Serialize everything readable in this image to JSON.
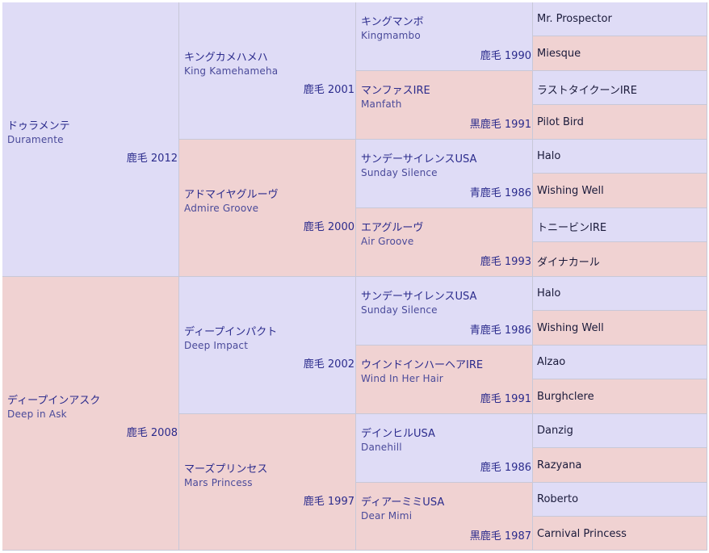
{
  "gen1": [
    {
      "ja": "ドゥラメンテ",
      "en": "Duramente",
      "year": "鹿毛 2012"
    },
    {
      "ja": "ディープインアスク",
      "en": "Deep in Ask",
      "year": "鹿毛 2008"
    }
  ],
  "gen2": [
    {
      "ja": "キングカメハメハ",
      "en": "King Kamehameha",
      "year": "鹿毛 2001"
    },
    {
      "ja": "アドマイヤグルーヴ",
      "en": "Admire Groove",
      "year": "鹿毛 2000"
    },
    {
      "ja": "ディープインパクト",
      "en": "Deep Impact",
      "year": "鹿毛 2002"
    },
    {
      "ja": "マーズプリンセス",
      "en": "Mars Princess",
      "year": "鹿毛 1997"
    }
  ],
  "gen3": [
    {
      "ja": "キングマンボ",
      "en": "Kingmambo",
      "year": "鹿毛 1990"
    },
    {
      "ja": "マンファスIRE",
      "en": "Manfath",
      "year": "黒鹿毛 1991"
    },
    {
      "ja": "サンデーサイレンスUSA",
      "en": "Sunday Silence",
      "year": "青鹿毛 1986"
    },
    {
      "ja": "エアグルーヴ",
      "en": "Air Groove",
      "year": "鹿毛 1993"
    },
    {
      "ja": "サンデーサイレンスUSA",
      "en": "Sunday Silence",
      "year": "青鹿毛 1986"
    },
    {
      "ja": "ウインドインハーヘアIRE",
      "en": "Wind In Her Hair",
      "year": "鹿毛 1991"
    },
    {
      "ja": "デインヒルUSA",
      "en": "Danehill",
      "year": "鹿毛 1986"
    },
    {
      "ja": "ディアーミミUSA",
      "en": "Dear Mimi",
      "year": "黒鹿毛 1987"
    }
  ],
  "gen4": [
    "Mr. Prospector",
    "Miesque",
    "ラストタイクーンIRE",
    "Pilot Bird",
    "Halo",
    "Wishing Well",
    "トニービンIRE",
    "ダイナカール",
    "Halo",
    "Wishing Well",
    "Alzao",
    "Burghclere",
    "Danzig",
    "Razyana",
    "Roberto",
    "Carnival Princess"
  ],
  "colors": {
    "sire_bg": "#dfdcf6",
    "dam_bg": "#f0d2d2",
    "text": "#2b2b8c",
    "border": "#c8c8d8"
  }
}
